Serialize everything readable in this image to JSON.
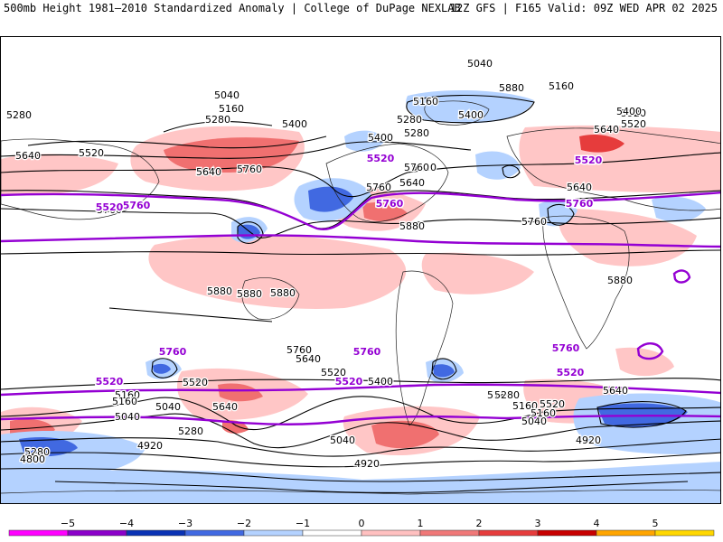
{
  "header": {
    "title": "500mb Height 1981–2010 Standardized Anomaly | College of DuPage NEXLAB",
    "run_info": "12Z GFS | F165 Valid: 09Z WED APR 02 2025"
  },
  "colorbar": {
    "ticks": [
      "−5",
      "−4",
      "−3",
      "−2",
      "−1",
      "0",
      "1",
      "2",
      "3",
      "4",
      "5"
    ],
    "colors": [
      "#ff00ff",
      "#8b00c9",
      "#0a32b4",
      "#4169e1",
      "#b4d2ff",
      "#ffffff",
      "#ffc0c0",
      "#f07878",
      "#e63c3c",
      "#c80000",
      "#ffa500",
      "#ffd700"
    ]
  },
  "contour_labels": [
    {
      "text": "5040",
      "cls": "black"
    },
    {
      "text": "5160",
      "cls": "black"
    },
    {
      "text": "5280",
      "cls": "black"
    },
    {
      "text": "5280",
      "cls": "black"
    },
    {
      "text": "5400",
      "cls": "black"
    },
    {
      "text": "5520",
      "cls": "black"
    },
    {
      "text": "5640",
      "cls": "black"
    },
    {
      "text": "5640",
      "cls": "black"
    },
    {
      "text": "5760",
      "cls": "black"
    },
    {
      "text": "5760",
      "cls": "black"
    },
    {
      "text": "5880",
      "cls": "black"
    },
    {
      "text": "5880",
      "cls": "black"
    },
    {
      "text": "5880",
      "cls": "black"
    },
    {
      "text": "5880",
      "cls": "black"
    },
    {
      "text": "5040",
      "cls": "black"
    },
    {
      "text": "5160",
      "cls": "black"
    },
    {
      "text": "5280",
      "cls": "black"
    },
    {
      "text": "5400",
      "cls": "black"
    },
    {
      "text": "5520",
      "cls": "black"
    },
    {
      "text": "5640",
      "cls": "black"
    },
    {
      "text": "5160",
      "cls": "black"
    },
    {
      "text": "5280",
      "cls": "black"
    },
    {
      "text": "5400",
      "cls": "black"
    },
    {
      "text": "5520",
      "cls": "black"
    },
    {
      "text": "5640",
      "cls": "black"
    },
    {
      "text": "5760",
      "cls": "black"
    },
    {
      "text": "5880",
      "cls": "black"
    },
    {
      "text": "5880",
      "cls": "black"
    },
    {
      "text": "5400",
      "cls": "black"
    },
    {
      "text": "5520",
      "cls": "black"
    },
    {
      "text": "5640",
      "cls": "black"
    },
    {
      "text": "5760",
      "cls": "black"
    },
    {
      "text": "5760",
      "cls": "black"
    },
    {
      "text": "5520",
      "cls": "black"
    },
    {
      "text": "5640",
      "cls": "black"
    },
    {
      "text": "5160",
      "cls": "black"
    },
    {
      "text": "5040",
      "cls": "black"
    },
    {
      "text": "5280",
      "cls": "black"
    },
    {
      "text": "5640",
      "cls": "black"
    },
    {
      "text": "5520",
      "cls": "black"
    },
    {
      "text": "5400",
      "cls": "black"
    },
    {
      "text": "5280",
      "cls": "black"
    },
    {
      "text": "5160",
      "cls": "black"
    },
    {
      "text": "5040",
      "cls": "black"
    },
    {
      "text": "5640",
      "cls": "black"
    },
    {
      "text": "5280",
      "cls": "black"
    },
    {
      "text": "5040",
      "cls": "black"
    },
    {
      "text": "5160",
      "cls": "black"
    },
    {
      "text": "5040",
      "cls": "black"
    },
    {
      "text": "4920",
      "cls": "black"
    },
    {
      "text": "4920",
      "cls": "black"
    },
    {
      "text": "4920",
      "cls": "black"
    },
    {
      "text": "4800",
      "cls": "black"
    },
    {
      "text": "5400",
      "cls": "black"
    },
    {
      "text": "5280",
      "cls": "black"
    },
    {
      "text": "5160",
      "cls": "black"
    },
    {
      "text": "5520",
      "cls": "black"
    },
    {
      "text": "5760",
      "cls": "black"
    },
    {
      "text": "5520",
      "cls": "purple"
    },
    {
      "text": "5760",
      "cls": "purple"
    },
    {
      "text": "5520",
      "cls": "purple"
    },
    {
      "text": "5760",
      "cls": "purple"
    },
    {
      "text": "5520",
      "cls": "purple"
    },
    {
      "text": "5760",
      "cls": "purple"
    },
    {
      "text": "5760",
      "cls": "purple"
    },
    {
      "text": "5760",
      "cls": "purple"
    },
    {
      "text": "5760",
      "cls": "purple"
    },
    {
      "text": "5520",
      "cls": "purple"
    },
    {
      "text": "5520",
      "cls": "purple"
    },
    {
      "text": "5520",
      "cls": "purple"
    }
  ]
}
